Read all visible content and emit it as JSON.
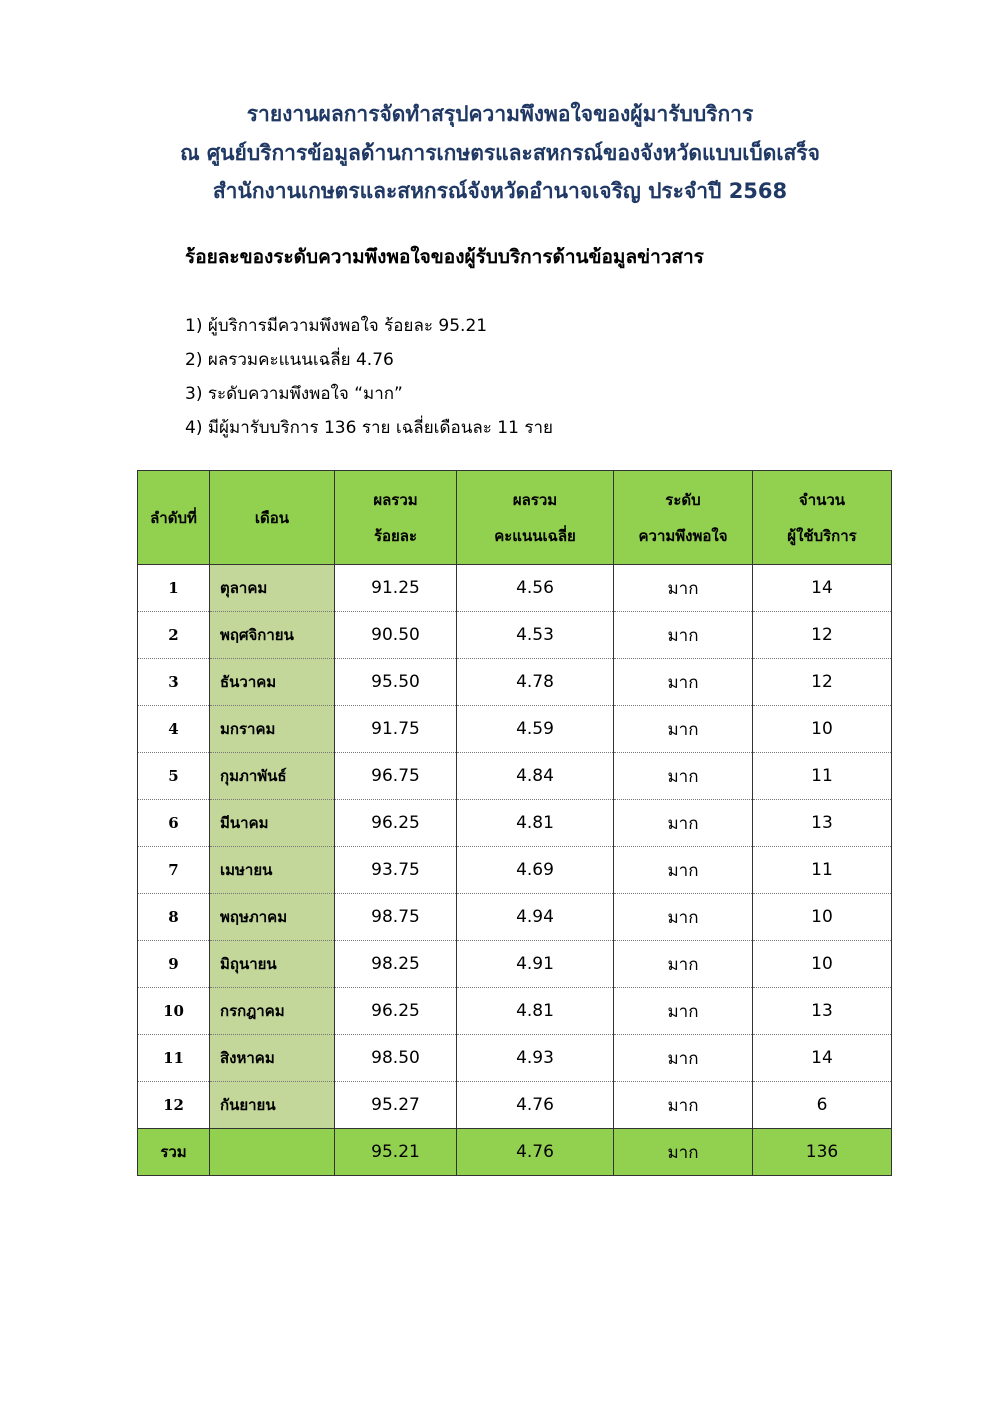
{
  "title": {
    "line1": "รายงานผลการจัดทำสรุปความพึงพอใจของผู้มารับบริการ",
    "line2": "ณ ศูนย์บริการข้อมูลด้านการเกษตรและสหกรณ์ของจังหวัดแบบเบ็ดเสร็จ",
    "line3": "สำนักงานเกษตรและสหกรณ์จังหวัดอำนาจเจริญ ประจำปี 2568"
  },
  "subheading": "ร้อยละของระดับความพึงพอใจของผู้รับบริการด้านข้อมูลข่าวสาร",
  "summary": [
    "1) ผู้บริการมีความพึงพอใจ ร้อยละ 95.21",
    "2) ผลรวมคะแนนเฉลี่ย 4.76",
    "3) ระดับความพึงพอใจ “มาก”",
    "4) มีผู้มารับบริการ 136 ราย เฉลี่ยเดือนละ 11 ราย"
  ],
  "table": {
    "headers": [
      [
        "ลำดับที่"
      ],
      [
        "เดือน"
      ],
      [
        "ผลรวม",
        "ร้อยละ"
      ],
      [
        "ผลรวม",
        "คะแนนเฉลี่ย"
      ],
      [
        "ระดับ",
        "ความพึงพอใจ"
      ],
      [
        "จำนวน",
        "ผู้ใช้บริการ"
      ]
    ],
    "rows": [
      [
        "1",
        "ตุลาคม",
        "91.25",
        "4.56",
        "มาก",
        "14"
      ],
      [
        "2",
        "พฤศจิกายน",
        "90.50",
        "4.53",
        "มาก",
        "12"
      ],
      [
        "3",
        "ธันวาคม",
        "95.50",
        "4.78",
        "มาก",
        "12"
      ],
      [
        "4",
        "มกราคม",
        "91.75",
        "4.59",
        "มาก",
        "10"
      ],
      [
        "5",
        "กุมภาพันธ์",
        "96.75",
        "4.84",
        "มาก",
        "11"
      ],
      [
        "6",
        "มีนาคม",
        "96.25",
        "4.81",
        "มาก",
        "13"
      ],
      [
        "7",
        "เมษายน",
        "93.75",
        "4.69",
        "มาก",
        "11"
      ],
      [
        "8",
        "พฤษภาคม",
        "98.75",
        "4.94",
        "มาก",
        "10"
      ],
      [
        "9",
        "มิถุนายน",
        "98.25",
        "4.91",
        "มาก",
        "10"
      ],
      [
        "10",
        "กรกฎาคม",
        "96.25",
        "4.81",
        "มาก",
        "13"
      ],
      [
        "11",
        "สิงหาคม",
        "98.50",
        "4.93",
        "มาก",
        "14"
      ],
      [
        "12",
        "กันยายน",
        "95.27",
        "4.76",
        "มาก",
        "6"
      ]
    ],
    "total": [
      "รวม",
      "",
      "95.21",
      "4.76",
      "มาก",
      "136"
    ]
  },
  "colors": {
    "title": "#1f3864",
    "header_bg": "#92d050",
    "month_bg": "#c4d79b"
  }
}
